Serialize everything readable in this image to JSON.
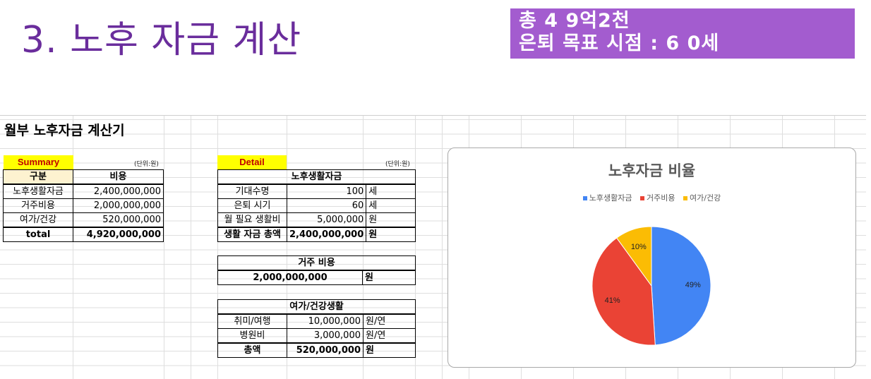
{
  "slide": {
    "title": "3. 노후 자금 계산",
    "banner_line1": "총 4 9억2천",
    "banner_line2": "은퇴 목표 시점 : 6 0세"
  },
  "sheet": {
    "title": "월부 노후자금 계산기"
  },
  "summary": {
    "tag": "Summary",
    "unit_note": "(단위:원)",
    "headers": [
      "구분",
      "비용"
    ],
    "rows": [
      {
        "label": "노후생활자금",
        "value": "2,400,000,000"
      },
      {
        "label": "거주비용",
        "value": "2,000,000,000"
      },
      {
        "label": "여가/건강",
        "value": "520,000,000"
      }
    ],
    "total_label": "total",
    "total_value": "4,920,000,000"
  },
  "detail": {
    "tag": "Detail",
    "unit_note": "(단위:원)",
    "living": {
      "header": "노후생활자금",
      "rows": [
        {
          "label": "기대수명",
          "value": "100",
          "unit": "세"
        },
        {
          "label": "은퇴 시기",
          "value": "60",
          "unit": "세"
        },
        {
          "label": "월 필요 생활비",
          "value": "5,000,000",
          "unit": "원"
        }
      ],
      "total_label": "생활 자금 총액",
      "total_value": "2,400,000,000",
      "total_unit": "원"
    },
    "housing": {
      "header": "거주 비용",
      "value": "2,000,000,000",
      "unit": "원"
    },
    "leisure": {
      "header": "여가/건강생활",
      "rows": [
        {
          "label": "취미/여행",
          "value": "10,000,000",
          "unit": "원/연"
        },
        {
          "label": "병원비",
          "value": "3,000,000",
          "unit": "원/연"
        }
      ],
      "total_label": "총액",
      "total_value": "520,000,000",
      "total_unit": "원"
    }
  },
  "chart_data": {
    "type": "pie",
    "title": "노후자금 비율",
    "legend_position": "top",
    "categories": [
      "노후생활자금",
      "거주비용",
      "여가/건강"
    ],
    "values": [
      49,
      41,
      10
    ],
    "labels": [
      "49%",
      "41%",
      "10%"
    ],
    "colors": [
      "#4285f4",
      "#ea4335",
      "#fbbc04"
    ]
  }
}
